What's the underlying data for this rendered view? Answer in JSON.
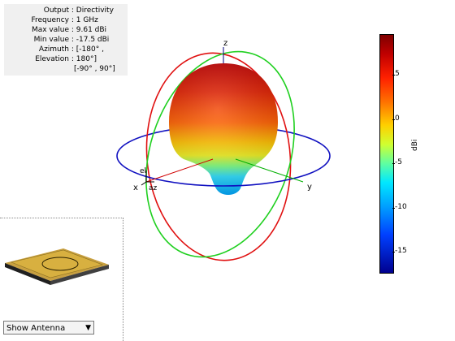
{
  "info": {
    "rows": [
      {
        "label": "Output",
        "value": "Directivity"
      },
      {
        "label": "Frequency",
        "value": "1 GHz"
      },
      {
        "label": "Max value",
        "value": "9.61 dBi"
      },
      {
        "label": "Min value",
        "value": "-17.5 dBi"
      },
      {
        "label": "Azimuth",
        "value": "[-180° ,"
      },
      {
        "label": "Elevation",
        "value": "180°]"
      }
    ],
    "extra": "[-90° , 90°]"
  },
  "axes": {
    "x": "x",
    "y": "y",
    "z": "z",
    "el": "el",
    "az": "az"
  },
  "colorbar": {
    "unit": "dBi",
    "ticks": [
      "5",
      "0",
      "-5",
      "-10",
      "-15"
    ],
    "max": 9.61,
    "min": -17.5
  },
  "panel": {
    "select_value": "Show Antenna"
  },
  "colors": {
    "xz_cut": "#e01010",
    "yz_cut": "#20d020",
    "xy_cut": "#1010c0"
  }
}
